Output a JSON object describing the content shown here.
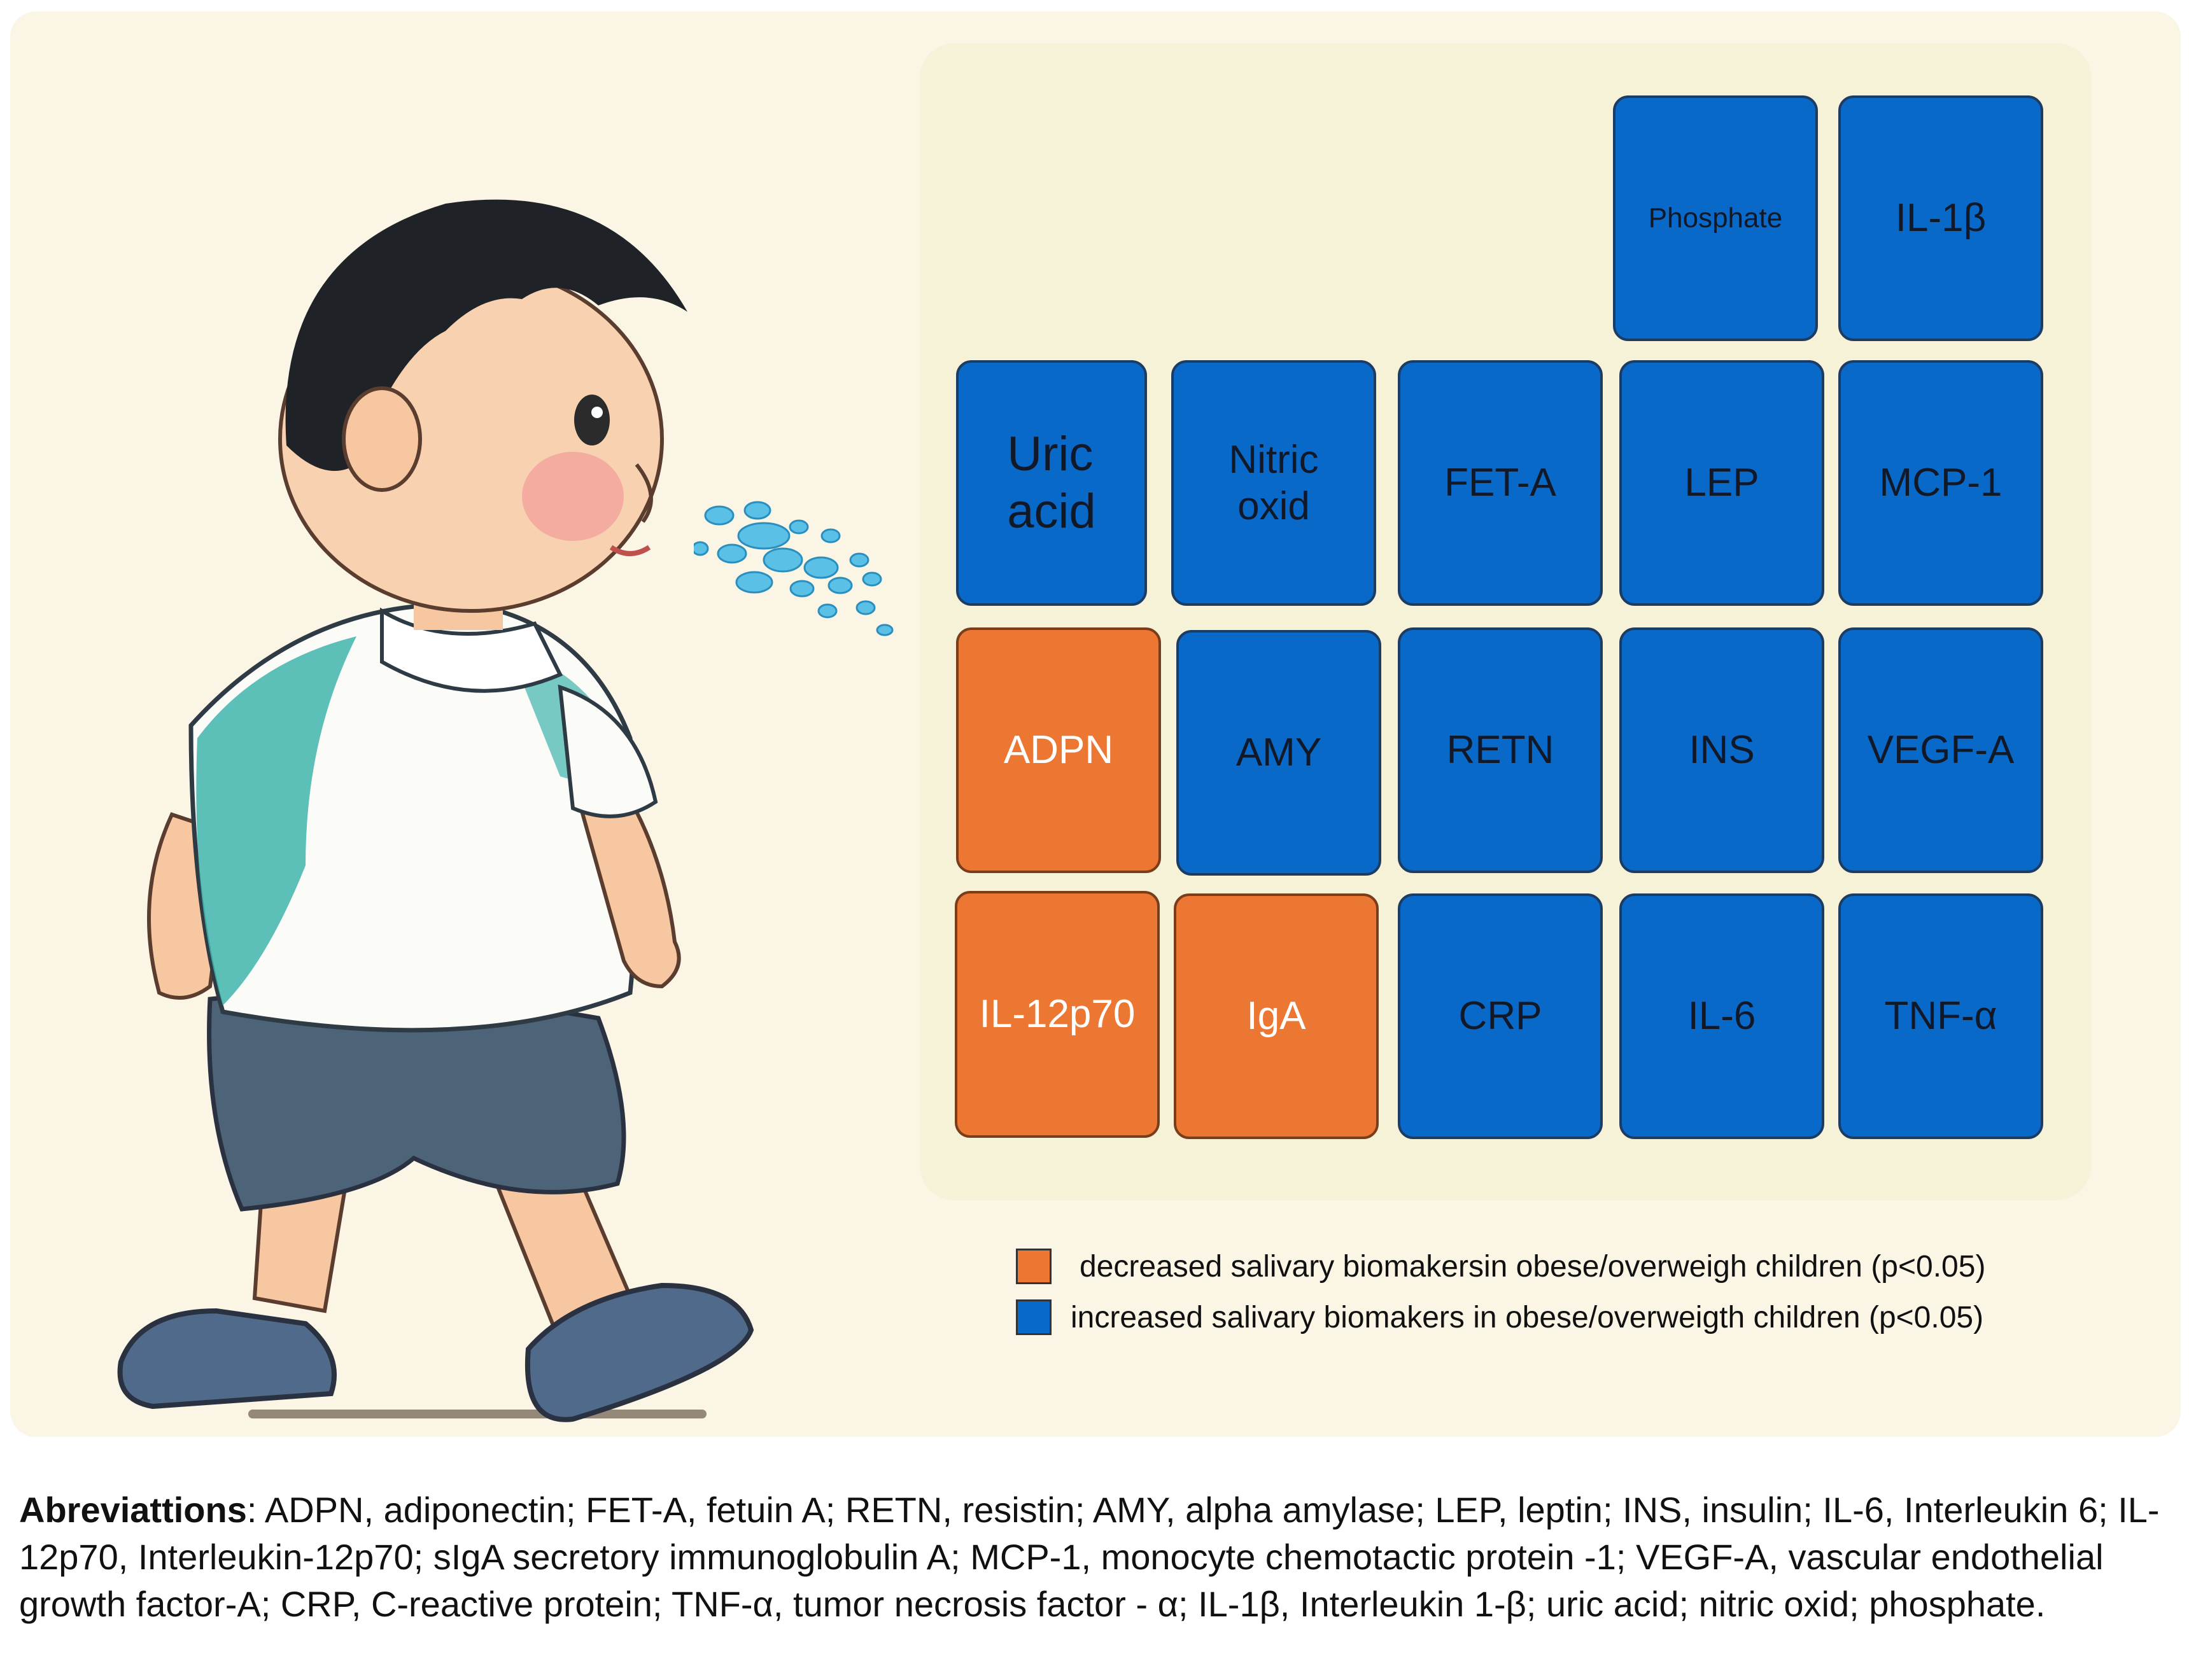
{
  "tiles": [
    {
      "id": "phosphate",
      "label": "Phosphate",
      "color": "blue"
    },
    {
      "id": "il1b",
      "label": "IL-1β",
      "color": "blue"
    },
    {
      "id": "uric-acid",
      "label": "Uric\nacid",
      "color": "blue"
    },
    {
      "id": "nitric-oxid",
      "label": "Nitric\noxid",
      "color": "blue"
    },
    {
      "id": "fet-a",
      "label": "FET-A",
      "color": "blue"
    },
    {
      "id": "lep",
      "label": "LEP",
      "color": "blue"
    },
    {
      "id": "mcp-1",
      "label": "MCP-1",
      "color": "blue"
    },
    {
      "id": "adpn",
      "label": "ADPN",
      "color": "orange"
    },
    {
      "id": "amy",
      "label": "AMY",
      "color": "blue"
    },
    {
      "id": "retn",
      "label": "RETN",
      "color": "blue"
    },
    {
      "id": "ins",
      "label": "INS",
      "color": "blue"
    },
    {
      "id": "vegf-a",
      "label": "VEGF-A",
      "color": "blue"
    },
    {
      "id": "il-12p70",
      "label": "IL-12p70",
      "color": "orange"
    },
    {
      "id": "iga",
      "label": "IgA",
      "color": "orange"
    },
    {
      "id": "crp",
      "label": "CRP",
      "color": "blue"
    },
    {
      "id": "il-6",
      "label": "IL-6",
      "color": "blue"
    },
    {
      "id": "tnf-a",
      "label": "TNF-α",
      "color": "blue"
    }
  ],
  "legend": {
    "decreased": "decreased salivary biomakersin obese/overweigh children (p<0.05)",
    "increased": "increased salivary biomakers in obese/overweigth children (p<0.05)"
  },
  "colors": {
    "increased": "#0969c8",
    "decreased": "#ec7733"
  },
  "abbreviations": {
    "heading": "Abreviattions",
    "text": ": ADPN, adiponectin; FET-A, fetuin A; RETN, resistin; AMY, alpha amylase; LEP, leptin; INS, insulin; IL-6, Interleukin 6; IL-12p70, Interleukin-12p70; sIgA secretory immunoglobulin A; MCP-1, monocyte chemotactic protein -1; VEGF-A, vascular endothelial growth factor-A; CRP, C-reactive protein; TNF-α, tumor necrosis factor - α; IL-1β, Interleukin 1-β; uric acid; nitric oxid; phosphate."
  }
}
